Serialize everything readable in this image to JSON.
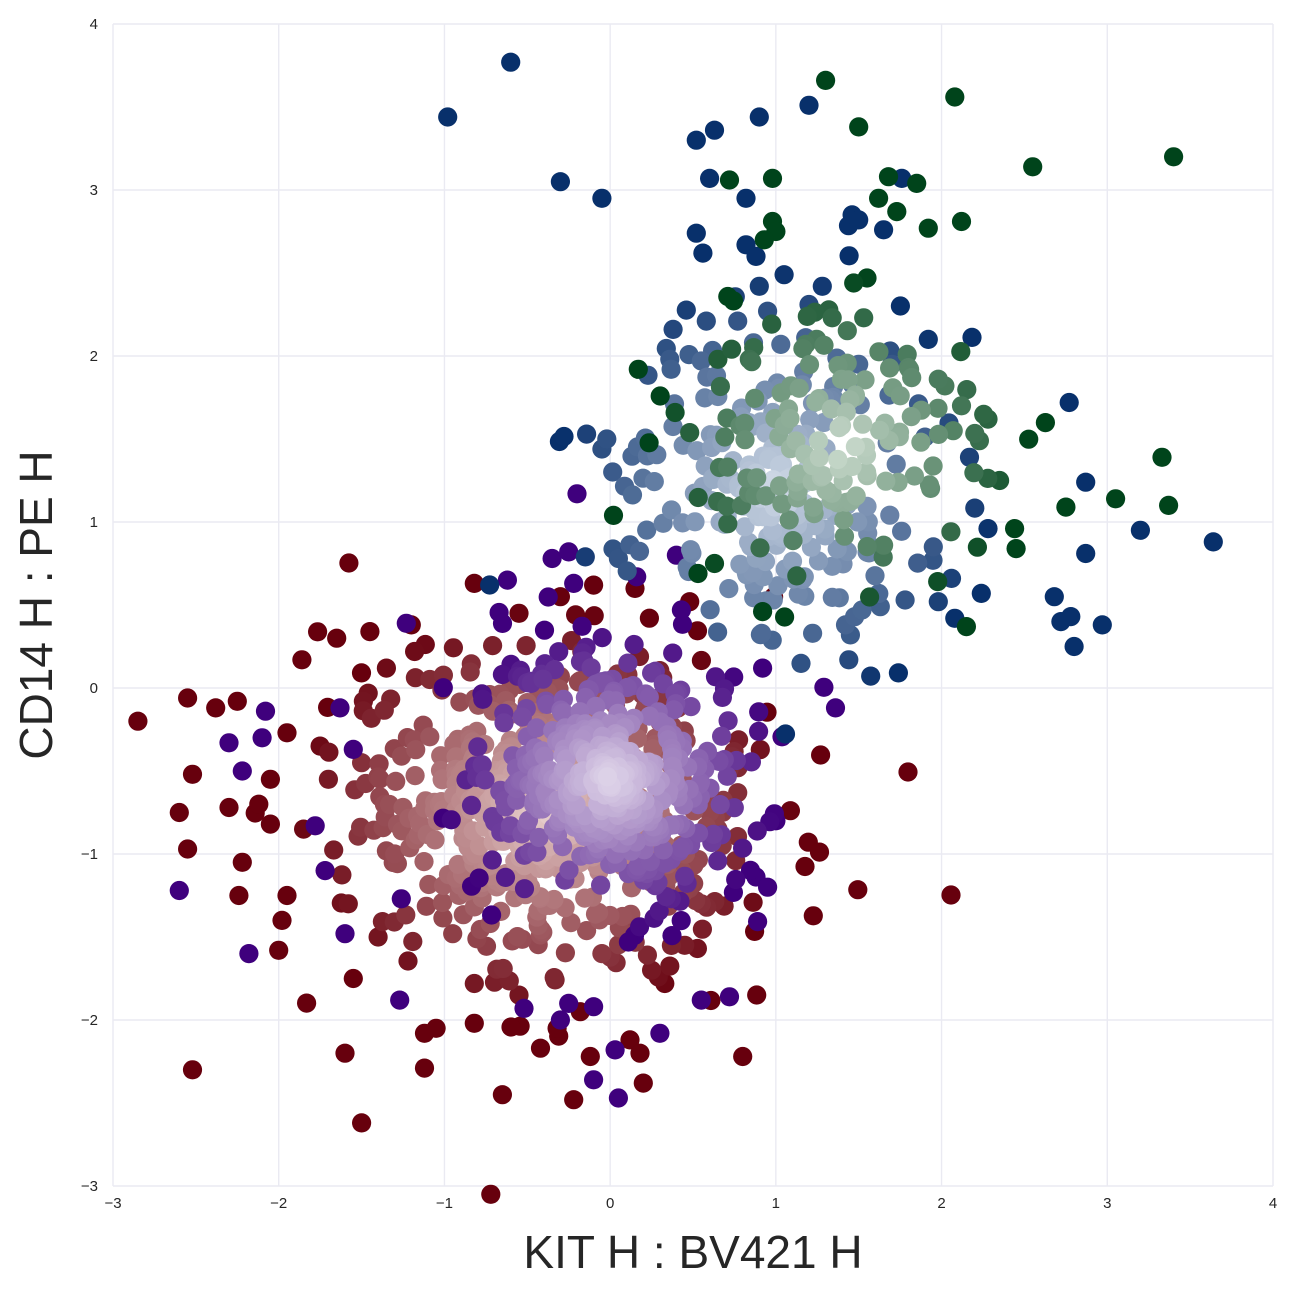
{
  "chart_data": {
    "type": "scatter",
    "title": "",
    "xlabel": "KIT H : BV421 H",
    "ylabel": "CD14 H : PE H",
    "xlim": [
      -3,
      4
    ],
    "ylim": [
      -3,
      4
    ],
    "xticks": [
      "−3",
      "−2",
      "−1",
      "0",
      "1",
      "2",
      "3",
      "4"
    ],
    "yticks": [
      "−3",
      "−2",
      "−1",
      "0",
      "1",
      "2",
      "3",
      "4"
    ],
    "xtick_values": [
      -3,
      -2,
      -1,
      0,
      1,
      2,
      3,
      4
    ],
    "ytick_values": [
      -3,
      -2,
      -1,
      0,
      1,
      2,
      3,
      4
    ],
    "grid": true,
    "legend": "none",
    "series": [
      {
        "colormap": "Reds",
        "color_light": "#fff5f0",
        "color_dark": "#67000d",
        "center": [
          -0.4,
          -0.75
        ],
        "spread": [
          0.8,
          0.65
        ],
        "count": 560,
        "points": [
          [
            -2.85,
            -0.2
          ],
          [
            -2.55,
            -0.06
          ],
          [
            -2.52,
            -0.52
          ],
          [
            -2.55,
            -0.97
          ],
          [
            -2.52,
            -2.3
          ],
          [
            -2.38,
            -0.12
          ],
          [
            -2.25,
            -0.08
          ],
          [
            -2.22,
            -1.05
          ],
          [
            -2.24,
            -1.25
          ],
          [
            -2.05,
            -0.55
          ],
          [
            -2.05,
            -0.82
          ],
          [
            -1.95,
            -1.25
          ],
          [
            -1.98,
            -1.4
          ],
          [
            -2.0,
            -1.58
          ],
          [
            -1.95,
            -0.27
          ],
          [
            -1.65,
            0.3
          ],
          [
            -1.6,
            -2.2
          ],
          [
            -1.55,
            -1.75
          ],
          [
            -1.5,
            -2.62
          ],
          [
            -1.45,
            0.34
          ],
          [
            -1.35,
            0.12
          ],
          [
            -1.3,
            -1.0
          ],
          [
            -1.2,
            0.38
          ],
          [
            -1.18,
            0.22
          ],
          [
            -1.12,
            -2.08
          ],
          [
            -1.12,
            -2.29
          ],
          [
            -1.05,
            -2.05
          ],
          [
            -0.82,
            0.63
          ],
          [
            -0.82,
            -1.78
          ],
          [
            -0.82,
            -2.02
          ],
          [
            -0.72,
            -3.05
          ],
          [
            -0.65,
            -2.45
          ],
          [
            -0.55,
            -1.85
          ],
          [
            -0.42,
            -2.17
          ],
          [
            -0.32,
            -2.05
          ],
          [
            -0.22,
            -2.48
          ],
          [
            -0.18,
            -1.95
          ],
          [
            -0.12,
            -2.22
          ],
          [
            -0.05,
            -1.6
          ],
          [
            0.12,
            -2.12
          ],
          [
            0.18,
            -2.2
          ],
          [
            0.2,
            -2.38
          ],
          [
            0.25,
            -1.7
          ],
          [
            0.33,
            -1.78
          ],
          [
            0.45,
            -1.55
          ],
          [
            0.55,
            -1.3
          ],
          [
            0.6,
            -0.75
          ],
          [
            0.65,
            -0.85
          ],
          [
            0.8,
            -2.22
          ],
          [
            0.48,
            0.52
          ],
          [
            0.15,
            0.6
          ],
          [
            -0.1,
            0.62
          ],
          [
            -0.3,
            0.55
          ],
          [
            -0.55,
            0.45
          ],
          [
            -2.6,
            -0.75
          ],
          [
            -2.3,
            -0.72
          ],
          [
            -1.75,
            -0.35
          ],
          [
            -1.7,
            -0.55
          ],
          [
            -1.58,
            -1.3
          ],
          [
            -1.4,
            -1.5
          ],
          [
            -1.85,
            -0.85
          ],
          [
            -2.12,
            -0.7
          ],
          [
            -1.5,
            -0.45
          ],
          [
            -1.25,
            -0.72
          ],
          [
            -0.95,
            -1.48
          ]
        ]
      },
      {
        "colormap": "Purples",
        "color_light": "#fcfbfd",
        "color_dark": "#3f007d",
        "center": [
          0.0,
          -0.55
        ],
        "spread": [
          0.55,
          0.5
        ],
        "count": 440,
        "points": [
          [
            -2.08,
            -0.14
          ],
          [
            -2.1,
            -0.3
          ],
          [
            -2.3,
            -0.33
          ],
          [
            -2.22,
            -0.5
          ],
          [
            -2.6,
            -1.22
          ],
          [
            -2.18,
            -1.6
          ],
          [
            -1.6,
            -1.48
          ],
          [
            -1.72,
            -1.1
          ],
          [
            -1.78,
            -0.83
          ],
          [
            -1.55,
            -0.37
          ],
          [
            -1.63,
            -0.12
          ],
          [
            -1.26,
            -1.27
          ],
          [
            -1.23,
            0.39
          ],
          [
            -0.62,
            0.65
          ],
          [
            -0.35,
            0.78
          ],
          [
            -0.25,
            0.82
          ],
          [
            -0.2,
            1.17
          ],
          [
            -0.22,
            0.63
          ],
          [
            0.16,
            0.67
          ],
          [
            0.4,
            0.8
          ],
          [
            0.43,
            0.47
          ],
          [
            0.92,
            0.12
          ],
          [
            1.36,
            -0.12
          ],
          [
            1.0,
            -0.8
          ],
          [
            0.95,
            -1.2
          ],
          [
            0.55,
            -1.88
          ],
          [
            0.72,
            -1.86
          ],
          [
            -1.27,
            -1.88
          ],
          [
            -0.52,
            -1.93
          ],
          [
            -0.25,
            -1.9
          ],
          [
            -0.1,
            -1.92
          ],
          [
            0.03,
            -2.18
          ],
          [
            0.3,
            -2.08
          ],
          [
            -0.1,
            -2.36
          ],
          [
            0.05,
            -2.47
          ],
          [
            -0.3,
            -2.0
          ]
        ]
      },
      {
        "colormap": "Blues",
        "color_light": "#f7fbff",
        "color_dark": "#08306b",
        "center": [
          1.0,
          1.2
        ],
        "spread": [
          0.7,
          0.7
        ],
        "count": 210,
        "points": [
          [
            -0.6,
            3.77
          ],
          [
            -0.98,
            3.44
          ],
          [
            -0.3,
            3.05
          ],
          [
            -0.05,
            2.95
          ],
          [
            0.52,
            3.3
          ],
          [
            0.63,
            3.36
          ],
          [
            0.9,
            3.44
          ],
          [
            1.2,
            3.51
          ],
          [
            0.6,
            3.07
          ],
          [
            0.82,
            2.95
          ],
          [
            0.52,
            2.74
          ],
          [
            0.56,
            2.62
          ],
          [
            0.38,
            2.16
          ],
          [
            0.36,
            1.98
          ],
          [
            0.55,
            1.97
          ],
          [
            0.58,
            2.21
          ],
          [
            0.77,
            2.21
          ],
          [
            0.82,
            2.67
          ],
          [
            0.88,
            2.6
          ],
          [
            0.9,
            2.42
          ],
          [
            0.95,
            2.27
          ],
          [
            1.05,
            2.49
          ],
          [
            1.2,
            2.31
          ],
          [
            1.28,
            2.42
          ],
          [
            1.18,
            2.11
          ],
          [
            1.03,
            2.07
          ],
          [
            1.46,
            2.85
          ],
          [
            1.5,
            2.82
          ],
          [
            1.65,
            2.76
          ],
          [
            1.76,
            3.07
          ],
          [
            1.92,
            2.1
          ],
          [
            1.5,
            1.95
          ],
          [
            1.7,
            1.95
          ],
          [
            1.46,
            1.83
          ],
          [
            2.77,
            1.72
          ],
          [
            3.64,
            0.88
          ],
          [
            3.2,
            0.95
          ],
          [
            2.87,
            1.24
          ],
          [
            2.87,
            0.81
          ],
          [
            2.28,
            0.96
          ],
          [
            1.95,
            0.85
          ],
          [
            2.06,
            0.66
          ],
          [
            2.24,
            0.57
          ],
          [
            1.98,
            0.52
          ],
          [
            2.08,
            0.42
          ],
          [
            2.68,
            0.55
          ],
          [
            2.72,
            0.4
          ],
          [
            2.78,
            0.43
          ],
          [
            2.97,
            0.38
          ],
          [
            2.8,
            0.25
          ],
          [
            1.78,
            0.53
          ],
          [
            1.63,
            0.49
          ],
          [
            1.52,
            0.47
          ],
          [
            1.42,
            0.38
          ],
          [
            1.45,
            0.32
          ],
          [
            1.44,
            0.17
          ],
          [
            -0.05,
            1.44
          ],
          [
            -0.02,
            1.5
          ],
          [
            -0.15,
            0.79
          ],
          [
            0.05,
            0.78
          ]
        ]
      },
      {
        "colormap": "Greens",
        "color_light": "#f7fcf5",
        "color_dark": "#00441b",
        "center": [
          1.4,
          1.45
        ],
        "spread": [
          0.6,
          0.55
        ],
        "count": 140,
        "points": [
          [
            1.3,
            3.66
          ],
          [
            2.08,
            3.56
          ],
          [
            1.5,
            3.38
          ],
          [
            3.4,
            3.2
          ],
          [
            2.55,
            3.14
          ],
          [
            0.72,
            3.06
          ],
          [
            0.98,
            3.07
          ],
          [
            1.68,
            3.08
          ],
          [
            1.85,
            3.04
          ],
          [
            1.62,
            2.95
          ],
          [
            1.73,
            2.87
          ],
          [
            1.92,
            2.77
          ],
          [
            2.12,
            2.81
          ],
          [
            0.98,
            2.81
          ],
          [
            1.0,
            2.75
          ],
          [
            0.93,
            2.7
          ],
          [
            1.55,
            2.47
          ],
          [
            1.47,
            2.44
          ],
          [
            1.34,
            2.23
          ],
          [
            1.53,
            2.23
          ],
          [
            1.18,
            2.07
          ],
          [
            0.65,
            1.98
          ],
          [
            0.17,
            1.92
          ],
          [
            3.33,
            1.39
          ],
          [
            3.05,
            1.14
          ],
          [
            3.37,
            1.1
          ],
          [
            2.75,
            1.09
          ],
          [
            2.35,
            1.25
          ],
          [
            2.45,
            0.84
          ],
          [
            2.15,
            0.37
          ],
          [
            1.8,
            1.93
          ],
          [
            1.82,
            1.87
          ],
          [
            1.98,
            1.86
          ],
          [
            2.02,
            1.82
          ],
          [
            2.12,
            1.7
          ],
          [
            2.28,
            1.62
          ],
          [
            2.07,
            1.55
          ],
          [
            1.65,
            0.86
          ],
          [
            0.53,
            0.69
          ],
          [
            0.63,
            0.75
          ],
          [
            0.92,
            0.46
          ],
          [
            0.02,
            1.04
          ]
        ]
      }
    ]
  }
}
